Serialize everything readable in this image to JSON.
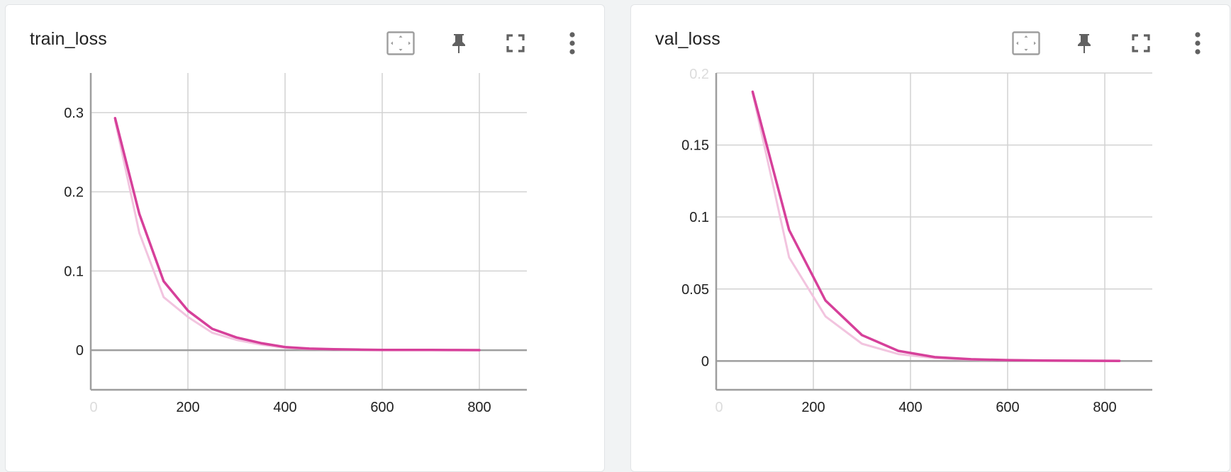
{
  "colors": {
    "smoothed": "#d6409a",
    "raw": "#f2c4df",
    "grid": "#d2d2d2",
    "axis": "#9e9e9e",
    "icon": "#616161"
  },
  "icons": [
    "fit-domain-icon",
    "pin-icon",
    "fullscreen-icon",
    "more-vert-icon"
  ],
  "chart_data": [
    {
      "type": "line",
      "title": "train_loss",
      "xlabel": "",
      "ylabel": "",
      "xlim": [
        0,
        900
      ],
      "ylim": [
        -0.05,
        0.35
      ],
      "x_ticks": [
        {
          "v": 0,
          "label": "0"
        },
        {
          "v": 200,
          "label": "200"
        },
        {
          "v": 400,
          "label": "400"
        },
        {
          "v": 600,
          "label": "600"
        },
        {
          "v": 800,
          "label": "800"
        }
      ],
      "y_ticks": [
        {
          "v": 0,
          "label": "0"
        },
        {
          "v": 0.1,
          "label": "0.1"
        },
        {
          "v": 0.2,
          "label": "0.2"
        },
        {
          "v": 0.3,
          "label": "0.3"
        }
      ],
      "grid": true,
      "series": [
        {
          "role": "raw",
          "x": [
            50,
            100,
            150,
            200,
            250,
            300,
            350,
            400,
            450,
            500,
            550,
            600,
            650,
            700,
            750,
            800
          ],
          "y": [
            0.29,
            0.148,
            0.067,
            0.042,
            0.022,
            0.013,
            0.007,
            0.003,
            0.0015,
            0.001,
            0.0005,
            0.0003,
            0.0002,
            0.0002,
            0.0001,
            0.0001
          ]
        },
        {
          "role": "smoothed",
          "x": [
            50,
            100,
            150,
            200,
            250,
            300,
            350,
            400,
            450,
            500,
            550,
            600,
            650,
            700,
            750,
            800
          ],
          "y": [
            0.293,
            0.172,
            0.087,
            0.05,
            0.027,
            0.016,
            0.009,
            0.004,
            0.002,
            0.0012,
            0.0007,
            0.0004,
            0.0003,
            0.0003,
            0.0002,
            0.0001
          ]
        }
      ]
    },
    {
      "type": "line",
      "title": "val_loss",
      "xlabel": "",
      "ylabel": "",
      "xlim": [
        0,
        900
      ],
      "ylim": [
        -0.02,
        0.2
      ],
      "x_ticks": [
        {
          "v": 0,
          "label": "0"
        },
        {
          "v": 200,
          "label": "200"
        },
        {
          "v": 400,
          "label": "400"
        },
        {
          "v": 600,
          "label": "600"
        },
        {
          "v": 800,
          "label": "800"
        }
      ],
      "y_ticks": [
        {
          "v": 0,
          "label": "0"
        },
        {
          "v": 0.05,
          "label": "0.05"
        },
        {
          "v": 0.1,
          "label": "0.1"
        },
        {
          "v": 0.15,
          "label": "0.15"
        },
        {
          "v": 0.2,
          "label": "0.2"
        }
      ],
      "grid": true,
      "series": [
        {
          "role": "raw",
          "x": [
            75,
            150,
            225,
            300,
            375,
            450,
            525,
            600,
            675,
            750,
            830
          ],
          "y": [
            0.186,
            0.072,
            0.031,
            0.012,
            0.0048,
            0.002,
            0.0009,
            0.0005,
            0.0003,
            0.0002,
            0.0001
          ]
        },
        {
          "role": "smoothed",
          "x": [
            75,
            150,
            225,
            300,
            375,
            450,
            525,
            600,
            675,
            750,
            830
          ],
          "y": [
            0.187,
            0.091,
            0.042,
            0.018,
            0.007,
            0.0027,
            0.0012,
            0.0006,
            0.0003,
            0.0002,
            0.0001
          ]
        }
      ]
    }
  ]
}
